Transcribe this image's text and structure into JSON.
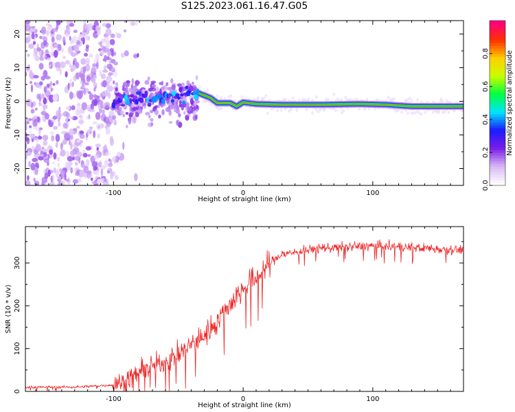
{
  "title": "S125.2023.061.16.47.G05",
  "chart_data": [
    {
      "type": "heatmap",
      "title": "S125.2023.061.16.47.G05",
      "xlabel": "Height of straight line (km)",
      "ylabel": "Frequency (Hz)",
      "xlim": [
        -168,
        170
      ],
      "ylim": [
        -25,
        24
      ],
      "x_ticks": [
        -100,
        0,
        100
      ],
      "y_ticks": [
        -20,
        -10,
        0,
        10,
        20
      ],
      "colorbar": {
        "label": "Normalized spectral amplitude",
        "range": [
          0.0,
          1.0
        ],
        "ticks": [
          "0.0",
          "0.2",
          "0.4",
          "0.6",
          "0.8"
        ],
        "tick_values": [
          0.0,
          0.2,
          0.4,
          0.6,
          0.8
        ],
        "colors": [
          "#ffffff",
          "#d6b8f5",
          "#7a1ee8",
          "#1a1aff",
          "#00e5ff",
          "#00ff40",
          "#c8ff00",
          "#ffd000",
          "#ff3000",
          "#ff0080"
        ]
      },
      "ridge": {
        "x": [
          -100,
          -80,
          -60,
          -45,
          -35,
          -25,
          -20,
          -10,
          -5,
          0,
          10,
          30,
          60,
          90,
          110,
          130,
          150,
          170
        ],
        "y": [
          0.2,
          0.5,
          1.0,
          1.5,
          2.5,
          1.0,
          -0.5,
          -0.5,
          -1.5,
          -0.3,
          -0.8,
          -1.0,
          -1.0,
          -0.8,
          -1.0,
          -1.5,
          -1.5,
          -1.5
        ]
      }
    },
    {
      "type": "line",
      "xlabel": "Height of straight line (km)",
      "ylabel": "SNR (10 * v/v)",
      "xlim": [
        -168,
        170
      ],
      "ylim": [
        0,
        385
      ],
      "x_ticks": [
        -100,
        0,
        100
      ],
      "y_ticks": [
        0,
        100,
        200,
        300
      ],
      "color": "#ee2020",
      "envelope": {
        "x": [
          -168,
          -130,
          -100,
          -90,
          -80,
          -70,
          -60,
          -50,
          -40,
          -30,
          -20,
          -10,
          0,
          10,
          15,
          20,
          30,
          60,
          100,
          140,
          170
        ],
        "y": [
          10,
          10,
          15,
          25,
          45,
          60,
          70,
          85,
          110,
          130,
          165,
          205,
          240,
          265,
          280,
          300,
          320,
          335,
          340,
          335,
          330
        ]
      }
    }
  ]
}
